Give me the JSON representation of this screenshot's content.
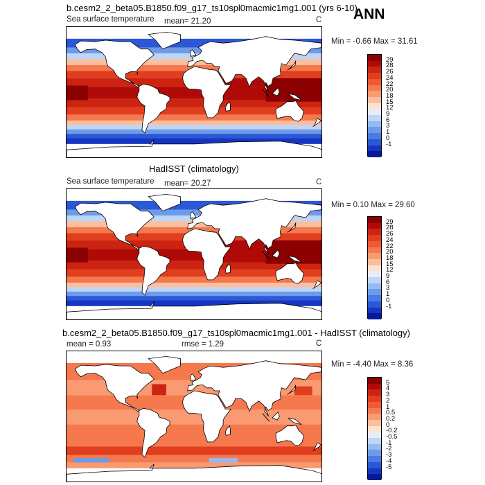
{
  "season": "ANN",
  "panels": [
    {
      "title": "b.cesm2_2_beta05.B1850.f09_g17_ts10spl0macmic1mg1.001 (yrs 6-10)",
      "variable": "Sea surface temperature",
      "mean_text": "mean=  21.20",
      "units": "C",
      "minmax_text": "Min =  -0.66 Max =  31.61",
      "kind": "abs"
    },
    {
      "title": "HadISST (climatology)",
      "variable": "Sea surface temperature",
      "mean_text": "mean=  20.27",
      "units": "C",
      "minmax_text": "Min =   0.10 Max =  29.60",
      "kind": "abs"
    },
    {
      "title": "b.cesm2_2_beta05.B1850.f09_g17_ts10spl0macmic1mg1.001 - HadISST (climatology)",
      "mean_text": "mean =   0.93",
      "rmse_text": "rmse =   1.29",
      "units": "C",
      "minmax_text": "Min =  -4.40 Max =   8.36",
      "kind": "diff"
    }
  ],
  "chart_data": [
    {
      "type": "heatmap",
      "title": "b.cesm2_2_beta05.B1850.f09_g17_ts10spl0macmic1mg1.001 (yrs 6-10)",
      "variable": "Sea surface temperature",
      "units": "C",
      "mean": 21.2,
      "min": -0.66,
      "max": 31.61,
      "colorbar_labels": [
        "29",
        "28",
        "26",
        "24",
        "22",
        "20",
        "18",
        "15",
        "12",
        "9",
        "6",
        "3",
        "1",
        "0",
        "-1"
      ],
      "colorbar_colors": [
        "#8b0000",
        "#b00a08",
        "#cc2410",
        "#e03e1f",
        "#ee5a33",
        "#f6794e",
        "#f99a72",
        "#fbbfa0",
        "#fde3cf",
        "#e6edf8",
        "#bfd5f4",
        "#96baf0",
        "#6e9aea",
        "#4a7be2",
        "#2b58d6",
        "#1535c2",
        "#041a9a"
      ]
    },
    {
      "type": "heatmap",
      "title": "HadISST (climatology)",
      "variable": "Sea surface temperature",
      "units": "C",
      "mean": 20.27,
      "min": 0.1,
      "max": 29.6,
      "colorbar_labels": [
        "29",
        "28",
        "26",
        "24",
        "22",
        "20",
        "18",
        "15",
        "12",
        "9",
        "6",
        "3",
        "1",
        "0",
        "-1"
      ],
      "colorbar_colors": [
        "#8b0000",
        "#b00a08",
        "#cc2410",
        "#e03e1f",
        "#ee5a33",
        "#f6794e",
        "#f99a72",
        "#fbbfa0",
        "#fde3cf",
        "#e6edf8",
        "#bfd5f4",
        "#96baf0",
        "#6e9aea",
        "#4a7be2",
        "#2b58d6",
        "#1535c2",
        "#041a9a"
      ]
    },
    {
      "type": "heatmap",
      "title": "b.cesm2_2_beta05.B1850.f09_g17_ts10spl0macmic1mg1.001 - HadISST (climatology)",
      "units": "C",
      "mean": 0.93,
      "rmse": 1.29,
      "min": -4.4,
      "max": 8.36,
      "colorbar_labels": [
        "5",
        "4",
        "3",
        "2",
        "1",
        "0.5",
        "0.2",
        "0",
        "-0.2",
        "-0.5",
        "-1",
        "-2",
        "-3",
        "-4",
        "-5"
      ],
      "colorbar_colors": [
        "#8b0000",
        "#b00a08",
        "#cc2410",
        "#e03e1f",
        "#ee5a33",
        "#f6794e",
        "#f99a72",
        "#fbbfa0",
        "#fde3cf",
        "#e6edf8",
        "#bfd5f4",
        "#96baf0",
        "#6e9aea",
        "#4a7be2",
        "#2b58d6",
        "#1535c2",
        "#041a9a"
      ]
    }
  ]
}
